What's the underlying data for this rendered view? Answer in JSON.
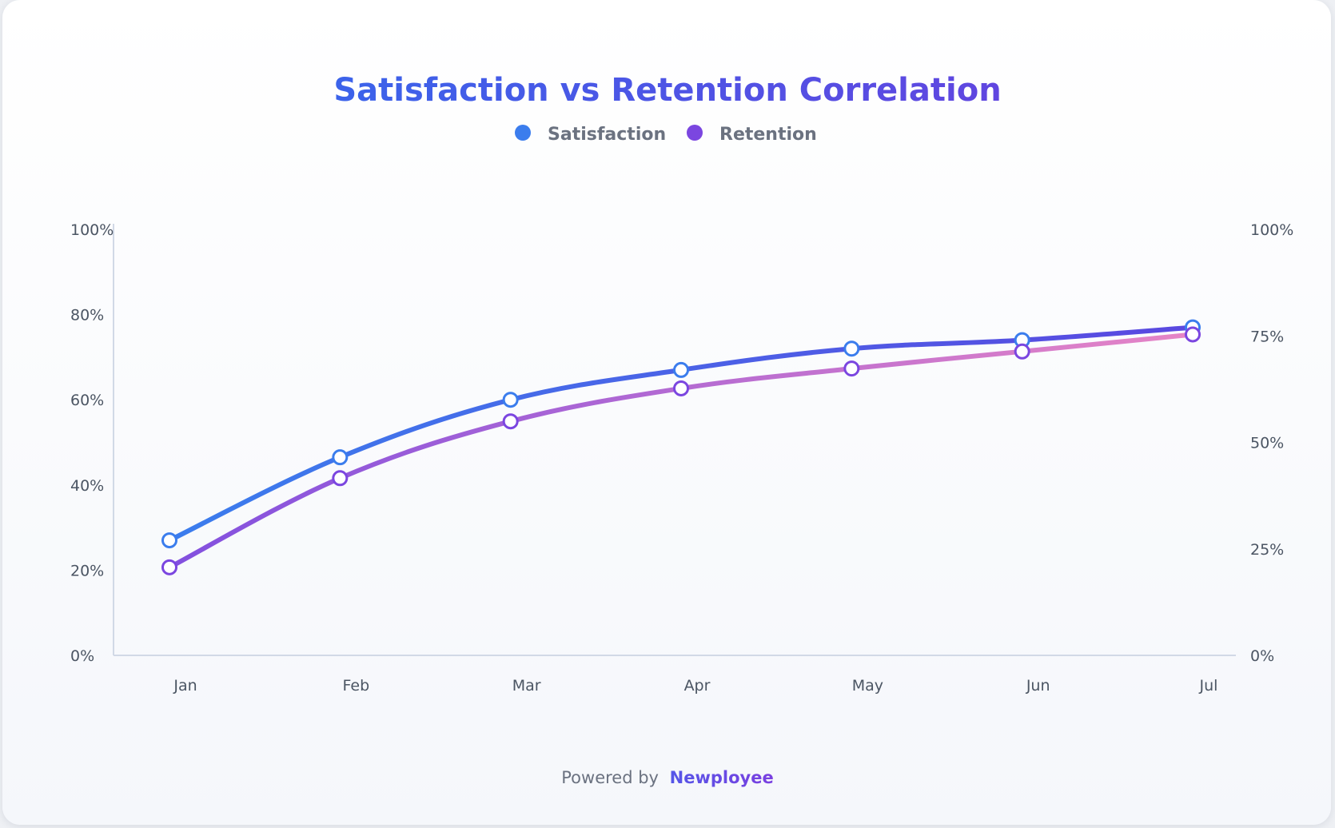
{
  "footer": {
    "prefix": "Powered by",
    "brand": "Newployee"
  },
  "colors": {
    "satisfaction": "#3b7ded",
    "satisfaction_end": "#5a48e0",
    "retention_start": "#8250df",
    "retention_end": "#e685c6",
    "retention_marker": "#7b46e0",
    "axis": "#d1d9e6",
    "title_start": "#3b63ea",
    "title_end": "#6046e0"
  },
  "chart_data": {
    "type": "line",
    "title": "Satisfaction vs Retention Correlation",
    "categories": [
      "Jan",
      "Feb",
      "Mar",
      "Apr",
      "May",
      "Jun",
      "Jul"
    ],
    "series": [
      {
        "name": "Satisfaction",
        "axis": "left",
        "values": [
          27,
          46.5,
          60,
          67,
          72,
          74,
          77
        ]
      },
      {
        "name": "Retention",
        "axis": "right",
        "values": [
          15.5,
          31.2,
          41.2,
          47,
          50.5,
          53.5,
          56.5
        ]
      }
    ],
    "y_left": {
      "min": 0,
      "max": 100,
      "ticks": [
        "0%",
        "20%",
        "40%",
        "60%",
        "80%",
        "100%"
      ],
      "tick_values": [
        0,
        20,
        40,
        60,
        80,
        100
      ]
    },
    "y_right": {
      "min": 0,
      "max": 75,
      "ticks": [
        "0%",
        "25%",
        "50%",
        "75%",
        "100%"
      ],
      "tick_values": [
        0,
        18.75,
        37.5,
        56.25,
        75
      ]
    },
    "legend_position": "top-center",
    "grid": false
  }
}
